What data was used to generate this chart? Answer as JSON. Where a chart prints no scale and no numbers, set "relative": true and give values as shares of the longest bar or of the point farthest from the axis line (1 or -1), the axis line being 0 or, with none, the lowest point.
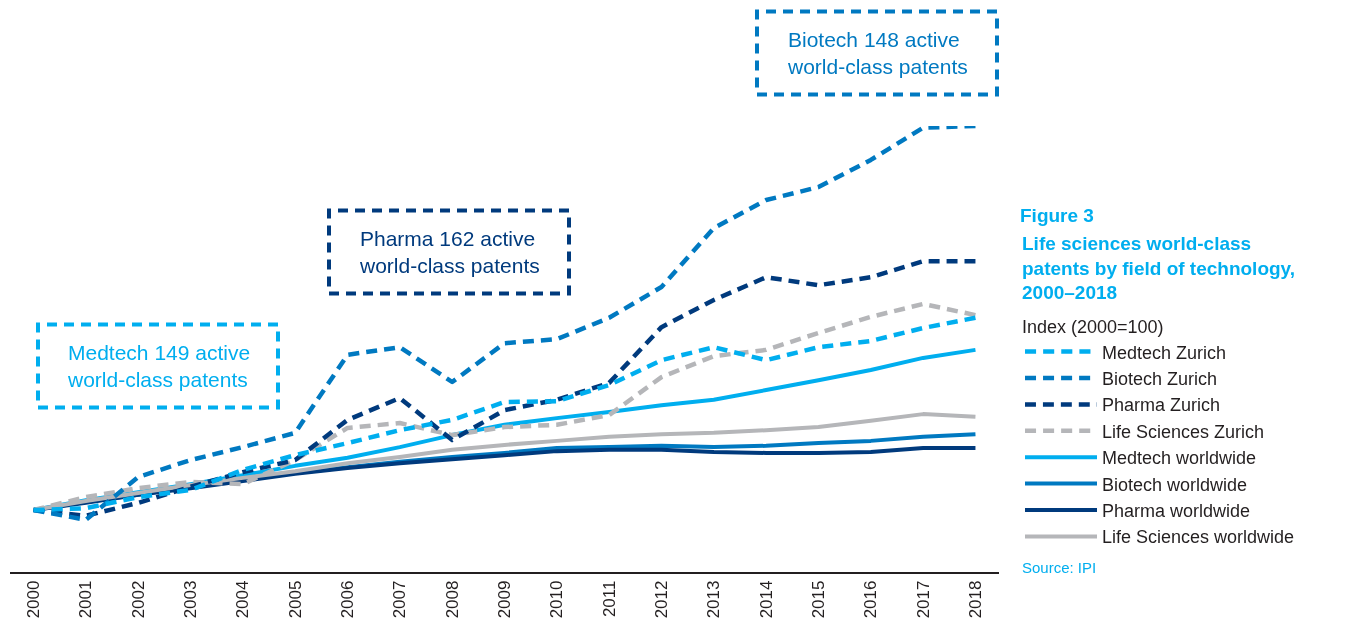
{
  "chart_data": {
    "type": "line",
    "title": "Figure 3",
    "subtitle": "Life sciences world-class patents by field of technology, 2000–2018",
    "legend_title": "Index (2000=100)",
    "relative": true,
    "legend": "right",
    "categories": [
      "2000",
      "2001",
      "2002",
      "2003",
      "2004",
      "2005",
      "2006",
      "2007",
      "2008",
      "2009",
      "2010",
      "2011",
      "2012",
      "2013",
      "2014",
      "2015",
      "2016",
      "2017",
      "2018"
    ],
    "annotations": [
      "Biotech 148 active world-class patents",
      "Pharma 162 active world-class patents",
      "Medtech 149 active world-class patents",
      "Source: IPI"
    ],
    "series": [
      {
        "name": "Medtech Zurich",
        "color": "#00aeef",
        "line_style": "dashed",
        "values": [
          0.139,
          0.143,
          0.168,
          0.184,
          0.229,
          0.262,
          0.289,
          0.318,
          0.341,
          0.381,
          0.383,
          0.419,
          0.475,
          0.504,
          0.475,
          0.504,
          0.518,
          0.547,
          0.57
        ]
      },
      {
        "name": "Biotech Zurich",
        "color": "#0079c1",
        "line_style": "dashed",
        "values": [
          0.139,
          0.117,
          0.213,
          0.251,
          0.28,
          0.312,
          0.487,
          0.504,
          0.426,
          0.513,
          0.522,
          0.57,
          0.639,
          0.771,
          0.834,
          0.863,
          0.924,
          0.996,
          1.0
        ]
      },
      {
        "name": "Pharma Zurich",
        "color": "#003a7d",
        "line_style": "dashed",
        "values": [
          0.139,
          0.126,
          0.155,
          0.191,
          0.224,
          0.251,
          0.341,
          0.39,
          0.296,
          0.363,
          0.386,
          0.424,
          0.549,
          0.61,
          0.661,
          0.643,
          0.661,
          0.697,
          0.697
        ]
      },
      {
        "name": "Life Sciences Zurich",
        "color": "#b5b6b9",
        "line_style": "dashed",
        "values": [
          0.139,
          0.168,
          0.188,
          0.202,
          0.197,
          0.251,
          0.323,
          0.334,
          0.307,
          0.325,
          0.33,
          0.352,
          0.437,
          0.484,
          0.498,
          0.536,
          0.572,
          0.601,
          0.576
        ]
      },
      {
        "name": "Medtech worldwide",
        "color": "#00aeef",
        "line_style": "solid",
        "values": [
          0.139,
          0.161,
          0.179,
          0.197,
          0.217,
          0.238,
          0.256,
          0.28,
          0.307,
          0.33,
          0.345,
          0.359,
          0.374,
          0.386,
          0.408,
          0.43,
          0.453,
          0.48,
          0.498
        ]
      },
      {
        "name": "Biotech worldwide",
        "color": "#0079c1",
        "line_style": "solid",
        "values": [
          0.139,
          0.157,
          0.173,
          0.191,
          0.206,
          0.222,
          0.235,
          0.247,
          0.258,
          0.267,
          0.278,
          0.28,
          0.283,
          0.28,
          0.283,
          0.289,
          0.294,
          0.303,
          0.309
        ]
      },
      {
        "name": "Pharma worldwide",
        "color": "#003a7d",
        "line_style": "solid",
        "values": [
          0.139,
          0.155,
          0.173,
          0.188,
          0.204,
          0.22,
          0.233,
          0.244,
          0.253,
          0.262,
          0.271,
          0.274,
          0.274,
          0.269,
          0.267,
          0.267,
          0.269,
          0.278,
          0.278
        ]
      },
      {
        "name": "Life Sciences worldwide",
        "color": "#b5b6b9",
        "line_style": "solid",
        "values": [
          0.139,
          0.159,
          0.177,
          0.195,
          0.211,
          0.226,
          0.244,
          0.258,
          0.274,
          0.285,
          0.294,
          0.303,
          0.309,
          0.312,
          0.318,
          0.325,
          0.339,
          0.354,
          0.348
        ]
      }
    ]
  }
}
